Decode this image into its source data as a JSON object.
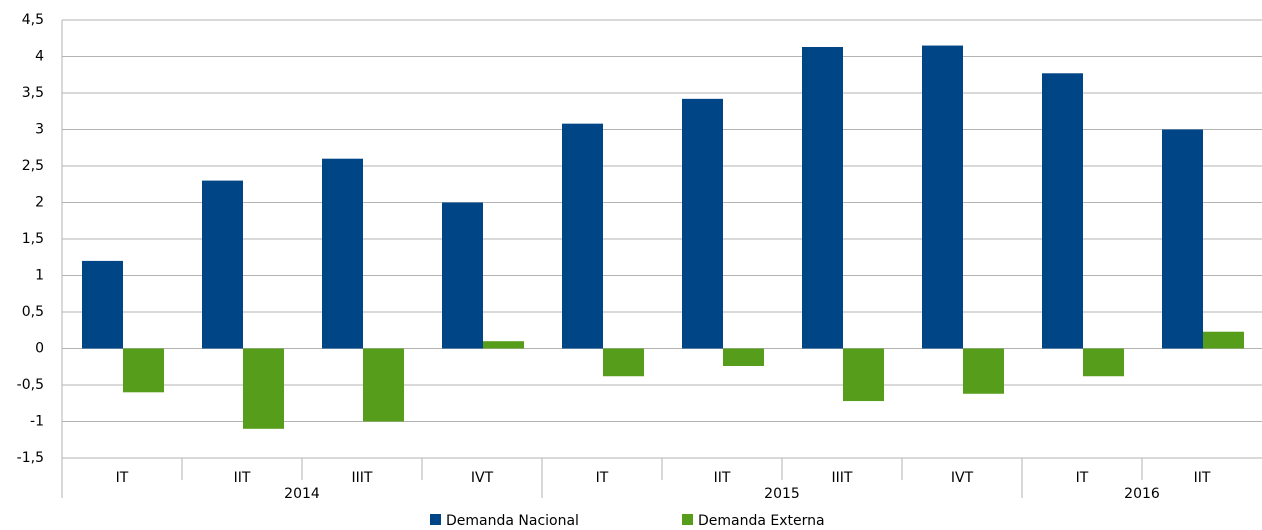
{
  "chart_data": {
    "type": "bar",
    "categories": [
      "IT",
      "IIT",
      "IIIT",
      "IVT",
      "IT",
      "IIT",
      "IIIT",
      "IVT",
      "IT",
      "IIT"
    ],
    "category_groups": [
      "2014",
      null,
      null,
      null,
      "2015",
      null,
      null,
      null,
      "2016",
      null
    ],
    "series": [
      {
        "name": "Demanda Nacional",
        "color": "#004586",
        "values": [
          1.2,
          2.3,
          2.6,
          2.0,
          3.08,
          3.42,
          4.13,
          4.15,
          3.77,
          3.0
        ]
      },
      {
        "name": "Demanda Externa",
        "color": "#579d1c",
        "values": [
          -0.6,
          -1.1,
          -1.0,
          0.1,
          -0.38,
          -0.24,
          -0.72,
          -0.62,
          -0.38,
          0.23
        ]
      }
    ],
    "ylim": [
      -1.5,
      4.5
    ],
    "yticks": [
      {
        "value": 4.5,
        "label": "4,5"
      },
      4,
      {
        "value": 3.5,
        "label": "3,5"
      },
      3,
      {
        "value": 2.5,
        "label": "2,5"
      },
      2,
      {
        "value": 1.5,
        "label": "1,5"
      },
      1,
      {
        "value": 0.5,
        "label": "0,5"
      },
      0,
      {
        "value": -0.5,
        "label": "-0,5"
      },
      -1,
      {
        "value": -1.5,
        "label": "-1,5"
      }
    ],
    "grid": true,
    "legend": "bottom"
  }
}
